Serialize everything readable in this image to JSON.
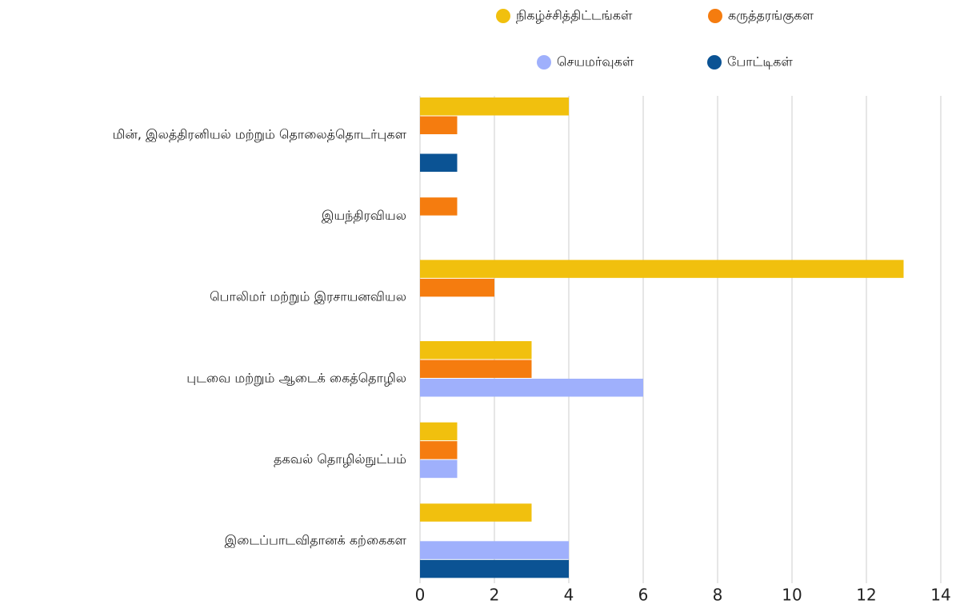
{
  "chart_data": {
    "type": "bar",
    "orientation": "horizontal",
    "categories": [
      "மின், இலத்திரனியல் மற்றும் தொலைத்தொடர்புகள",
      "இயந்திரவியல",
      "பொலிமர் மற்றும் இரசாயனவியல",
      "புடவை மற்றும் ஆடைக் கைத்தொழில",
      "தகவல் தொழில்நுட்பம்",
      "இடைப்பாடவிதானக் கற்கைகள"
    ],
    "series": [
      {
        "name": "நிகழ்ச்சித்திட்டங்கள்",
        "color": "#f1c00e",
        "values": [
          4,
          0,
          13,
          3,
          1,
          3
        ]
      },
      {
        "name": "கருத்தரங்குகள",
        "color": "#f57c0f",
        "values": [
          1,
          1,
          2,
          3,
          1,
          0
        ]
      },
      {
        "name": "செயமர்வுகள்",
        "color": "#9fb0fc",
        "values": [
          0,
          0,
          0,
          6,
          1,
          4
        ]
      },
      {
        "name": "போட்டிகள்",
        "color": "#0b5394",
        "values": [
          1,
          0,
          0,
          0,
          0,
          4
        ]
      }
    ],
    "xlim": [
      0,
      14
    ],
    "xticks": [
      0,
      2,
      4,
      6,
      8,
      10,
      12,
      14
    ],
    "grid": true,
    "legend": "top"
  }
}
